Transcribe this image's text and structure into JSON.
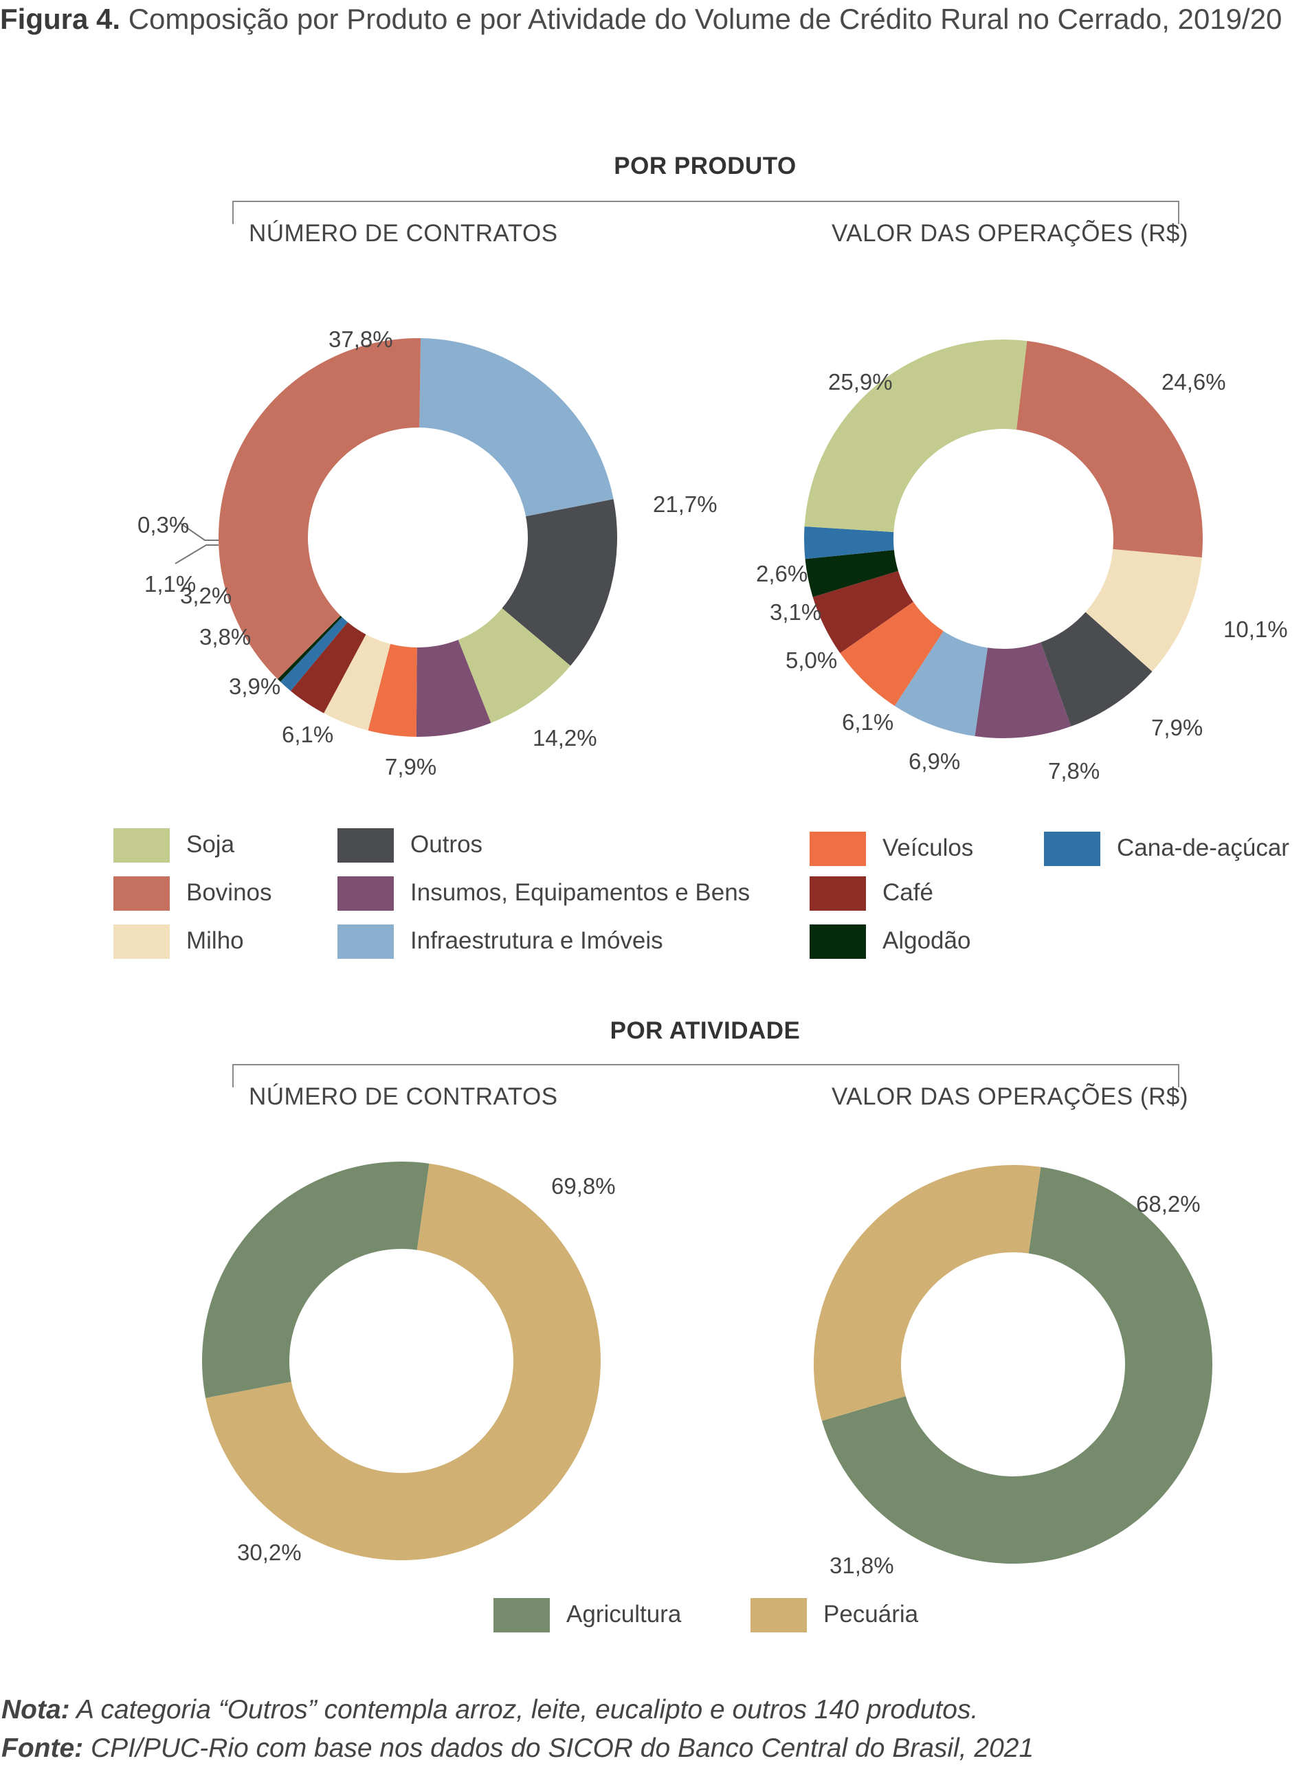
{
  "figure": {
    "label": "Figura 4.",
    "title": "Composição por Produto e por Atividade do Volume de Crédito Rural no Cerrado, 2019/20"
  },
  "sections": {
    "produto": "POR PRODUTO",
    "atividade": "POR ATIVIDADE",
    "left_sub": "NÚMERO DE CONTRATOS",
    "right_sub": "VALOR DAS OPERAÇÕES (R$)"
  },
  "legend_produto": [
    {
      "name": "Soja",
      "color": "#c3cc8e"
    },
    {
      "name": "Bovinos",
      "color": "#c67160"
    },
    {
      "name": "Milho",
      "color": "#f2e0bd"
    },
    {
      "name": "Outros",
      "color": "#4b4c4f"
    },
    {
      "name": "Insumos, Equipamentos e Bens",
      "color": "#7d5073"
    },
    {
      "name": "Infraestrutura e Imóveis",
      "color": "#8aafcf"
    },
    {
      "name": "Veículos",
      "color": "#ef7044"
    },
    {
      "name": "Café",
      "color": "#8e2c26"
    },
    {
      "name": "Algodão",
      "color": "#062a0c"
    },
    {
      "name": "Cana-de-açúcar",
      "color": "#2f72a8"
    }
  ],
  "legend_atividade": [
    {
      "name": "Agricultura",
      "color": "#758b6c"
    },
    {
      "name": "Pecuária",
      "color": "#d1b073"
    }
  ],
  "chart_data": [
    {
      "type": "pie",
      "title": "NÚMERO DE CONTRATOS",
      "group": "POR PRODUTO",
      "slices": [
        {
          "name": "Infraestrutura e Imóveis",
          "value": 21.7,
          "label": "21,7%",
          "color": "#8aafcf"
        },
        {
          "name": "Outros",
          "value": 14.2,
          "label": "14,2%",
          "color": "#4b4c4f"
        },
        {
          "name": "Soja",
          "value": 7.9,
          "label": "7,9%",
          "color": "#c3cc8e"
        },
        {
          "name": "Insumos, Equipamentos e Bens",
          "value": 6.1,
          "label": "6,1%",
          "color": "#7d5073"
        },
        {
          "name": "Veículos",
          "value": 3.9,
          "label": "3,9%",
          "color": "#ef7044"
        },
        {
          "name": "Milho",
          "value": 3.8,
          "label": "3,8%",
          "color": "#f2e0bd"
        },
        {
          "name": "Café",
          "value": 3.2,
          "label": "3,2%",
          "color": "#8e2c26"
        },
        {
          "name": "Cana-de-açúcar",
          "value": 1.1,
          "label": "1,1%",
          "color": "#2f72a8"
        },
        {
          "name": "Algodão",
          "value": 0.3,
          "label": "0,3%",
          "color": "#062a0c"
        },
        {
          "name": "Bovinos",
          "value": 37.8,
          "label": "37,8%",
          "color": "#c67160"
        }
      ]
    },
    {
      "type": "pie",
      "title": "VALOR DAS OPERAÇÕES (R$)",
      "group": "POR PRODUTO",
      "slices": [
        {
          "name": "Bovinos",
          "value": 24.6,
          "label": "24,6%",
          "color": "#c67160"
        },
        {
          "name": "Milho",
          "value": 10.1,
          "label": "10,1%",
          "color": "#f2e0bd"
        },
        {
          "name": "Outros",
          "value": 7.9,
          "label": "7,9%",
          "color": "#4b4c4f"
        },
        {
          "name": "Insumos, Equipamentos e Bens",
          "value": 7.8,
          "label": "7,8%",
          "color": "#7d5073"
        },
        {
          "name": "Infraestrutura e Imóveis",
          "value": 6.9,
          "label": "6,9%",
          "color": "#8aafcf"
        },
        {
          "name": "Veículos",
          "value": 6.1,
          "label": "6,1%",
          "color": "#ef7044"
        },
        {
          "name": "Café",
          "value": 5.0,
          "label": "5,0%",
          "color": "#8e2c26"
        },
        {
          "name": "Algodão",
          "value": 3.1,
          "label": "3,1%",
          "color": "#062a0c"
        },
        {
          "name": "Cana-de-açúcar",
          "value": 2.6,
          "label": "2,6%",
          "color": "#2f72a8"
        },
        {
          "name": "Soja",
          "value": 25.9,
          "label": "25,9%",
          "color": "#c3cc8e"
        }
      ]
    },
    {
      "type": "pie",
      "title": "NÚMERO DE CONTRATOS",
      "group": "POR ATIVIDADE",
      "slices": [
        {
          "name": "Pecuária",
          "value": 69.8,
          "label": "69,8%",
          "color": "#d1b073"
        },
        {
          "name": "Agricultura",
          "value": 30.2,
          "label": "30,2%",
          "color": "#758b6c"
        }
      ]
    },
    {
      "type": "pie",
      "title": "VALOR DAS OPERAÇÕES (R$)",
      "group": "POR ATIVIDADE",
      "slices": [
        {
          "name": "Agricultura",
          "value": 68.2,
          "label": "68,2%",
          "color": "#758b6c"
        },
        {
          "name": "Pecuária",
          "value": 31.8,
          "label": "31,8%",
          "color": "#d1b073"
        }
      ]
    }
  ],
  "footer": {
    "nota_label": "Nota:",
    "nota_text": "A categoria “Outros” contempla arroz, leite, eucalipto e outros 140 produtos.",
    "fonte_label": "Fonte:",
    "fonte_text": "CPI/PUC-Rio com base nos dados do SICOR do Banco Central do Brasil, 2021"
  }
}
